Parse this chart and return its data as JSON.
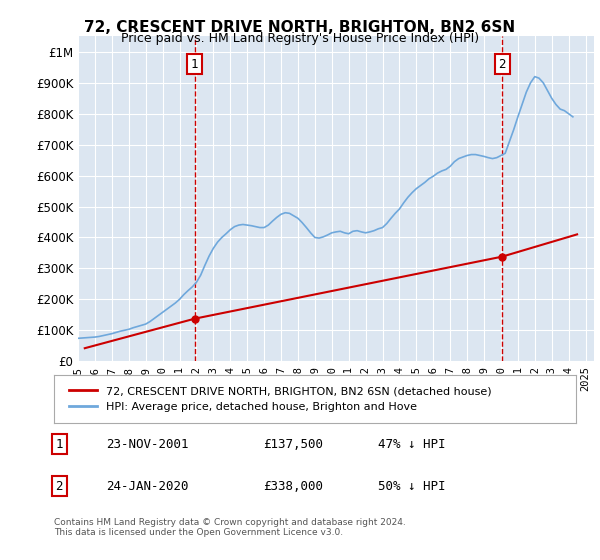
{
  "title": "72, CRESCENT DRIVE NORTH, BRIGHTON, BN2 6SN",
  "subtitle": "Price paid vs. HM Land Registry's House Price Index (HPI)",
  "background_color": "#ffffff",
  "plot_bg_color": "#dce6f1",
  "grid_color": "#ffffff",
  "hpi_color": "#6fa8dc",
  "price_color": "#cc0000",
  "vline_color": "#cc0000",
  "marker1_x": 2001.9,
  "marker2_x": 2020.07,
  "marker1_label": "1",
  "marker2_label": "2",
  "legend_label_price": "72, CRESCENT DRIVE NORTH, BRIGHTON, BN2 6SN (detached house)",
  "legend_label_hpi": "HPI: Average price, detached house, Brighton and Hove",
  "table_rows": [
    {
      "num": "1",
      "date": "23-NOV-2001",
      "price": "£137,500",
      "note": "47% ↓ HPI"
    },
    {
      "num": "2",
      "date": "24-JAN-2020",
      "price": "£338,000",
      "note": "50% ↓ HPI"
    }
  ],
  "footnote": "Contains HM Land Registry data © Crown copyright and database right 2024.\nThis data is licensed under the Open Government Licence v3.0.",
  "ylim": [
    0,
    1050000
  ],
  "yticks": [
    0,
    100000,
    200000,
    300000,
    400000,
    500000,
    600000,
    700000,
    800000,
    900000,
    1000000
  ],
  "ytick_labels": [
    "£0",
    "£100K",
    "£200K",
    "£300K",
    "£400K",
    "£500K",
    "£600K",
    "£700K",
    "£800K",
    "£900K",
    "£1M"
  ],
  "hpi_data_x": [
    1995.0,
    1995.25,
    1995.5,
    1995.75,
    1996.0,
    1996.25,
    1996.5,
    1996.75,
    1997.0,
    1997.25,
    1997.5,
    1997.75,
    1998.0,
    1998.25,
    1998.5,
    1998.75,
    1999.0,
    1999.25,
    1999.5,
    1999.75,
    2000.0,
    2000.25,
    2000.5,
    2000.75,
    2001.0,
    2001.25,
    2001.5,
    2001.75,
    2002.0,
    2002.25,
    2002.5,
    2002.75,
    2003.0,
    2003.25,
    2003.5,
    2003.75,
    2004.0,
    2004.25,
    2004.5,
    2004.75,
    2005.0,
    2005.25,
    2005.5,
    2005.75,
    2006.0,
    2006.25,
    2006.5,
    2006.75,
    2007.0,
    2007.25,
    2007.5,
    2007.75,
    2008.0,
    2008.25,
    2008.5,
    2008.75,
    2009.0,
    2009.25,
    2009.5,
    2009.75,
    2010.0,
    2010.25,
    2010.5,
    2010.75,
    2011.0,
    2011.25,
    2011.5,
    2011.75,
    2012.0,
    2012.25,
    2012.5,
    2012.75,
    2013.0,
    2013.25,
    2013.5,
    2013.75,
    2014.0,
    2014.25,
    2014.5,
    2014.75,
    2015.0,
    2015.25,
    2015.5,
    2015.75,
    2016.0,
    2016.25,
    2016.5,
    2016.75,
    2017.0,
    2017.25,
    2017.5,
    2017.75,
    2018.0,
    2018.25,
    2018.5,
    2018.75,
    2019.0,
    2019.25,
    2019.5,
    2019.75,
    2020.0,
    2020.25,
    2020.5,
    2020.75,
    2021.0,
    2021.25,
    2021.5,
    2021.75,
    2022.0,
    2022.25,
    2022.5,
    2022.75,
    2023.0,
    2023.25,
    2023.5,
    2023.75,
    2024.0,
    2024.25
  ],
  "hpi_data_y": [
    74000,
    75000,
    76000,
    77000,
    78000,
    80000,
    83000,
    86000,
    89000,
    93000,
    97000,
    100000,
    103000,
    108000,
    112000,
    116000,
    120000,
    128000,
    138000,
    148000,
    158000,
    168000,
    178000,
    188000,
    200000,
    215000,
    228000,
    240000,
    255000,
    278000,
    310000,
    340000,
    365000,
    385000,
    400000,
    412000,
    425000,
    435000,
    440000,
    442000,
    440000,
    438000,
    435000,
    432000,
    432000,
    440000,
    453000,
    465000,
    475000,
    480000,
    478000,
    470000,
    462000,
    448000,
    432000,
    415000,
    400000,
    398000,
    402000,
    408000,
    415000,
    418000,
    420000,
    415000,
    412000,
    420000,
    422000,
    418000,
    415000,
    418000,
    422000,
    428000,
    432000,
    445000,
    462000,
    478000,
    492000,
    512000,
    530000,
    545000,
    558000,
    568000,
    578000,
    590000,
    598000,
    608000,
    615000,
    620000,
    630000,
    645000,
    655000,
    660000,
    665000,
    668000,
    668000,
    665000,
    662000,
    658000,
    655000,
    658000,
    665000,
    672000,
    710000,
    748000,
    790000,
    830000,
    870000,
    900000,
    920000,
    915000,
    900000,
    875000,
    850000,
    830000,
    815000,
    810000,
    800000,
    790000
  ],
  "price_data_x": [
    1995.4,
    2001.9,
    2020.07,
    2024.5
  ],
  "price_data_y": [
    42000,
    137500,
    338000,
    410000
  ],
  "xmin": 1995,
  "xmax": 2025.5
}
